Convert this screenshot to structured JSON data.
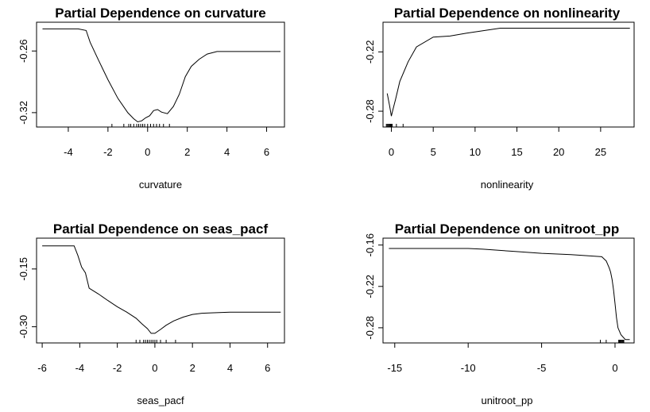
{
  "chart_data": [
    {
      "type": "line",
      "title": "Partial Dependence on curvature",
      "xlabel": "curvature",
      "ylabel": "",
      "xlim": [
        -5.6,
        6.9
      ],
      "ylim": [
        -0.334,
        -0.232
      ],
      "xticks": [
        -4,
        -2,
        0,
        2,
        4,
        6
      ],
      "xtick_labels": [
        "-4",
        "-2",
        "0",
        "2",
        "4",
        "6"
      ],
      "yticks": [
        -0.26,
        -0.32
      ],
      "ytick_labels": [
        "-0.26",
        "-0.32"
      ],
      "x": [
        -5.3,
        -3.5,
        -3.1,
        -2.9,
        -2.5,
        -2.0,
        -1.5,
        -1.0,
        -0.7,
        -0.5,
        -0.3,
        -0.1,
        0.1,
        0.3,
        0.5,
        0.7,
        1.0,
        1.3,
        1.6,
        1.9,
        2.2,
        2.6,
        3.0,
        3.5,
        4.0,
        6.7
      ],
      "y": [
        -0.2385,
        -0.2385,
        -0.24,
        -0.2515,
        -0.268,
        -0.288,
        -0.306,
        -0.32,
        -0.326,
        -0.329,
        -0.328,
        -0.325,
        -0.323,
        -0.318,
        -0.317,
        -0.3195,
        -0.321,
        -0.314,
        -0.302,
        -0.285,
        -0.275,
        -0.268,
        -0.263,
        -0.2605,
        -0.2605,
        -0.2605
      ],
      "rug": [
        -1.8,
        -1.2,
        -0.95,
        -0.85,
        -0.7,
        -0.55,
        -0.45,
        -0.35,
        -0.25,
        -0.15,
        0.0,
        0.15,
        0.3,
        0.45,
        0.6,
        0.8,
        1.1
      ]
    },
    {
      "type": "line",
      "title": "Partial Dependence on nonlinearity",
      "xlabel": "nonlinearity",
      "ylabel": "",
      "xlim": [
        -1.0,
        29.0
      ],
      "ylim": [
        -0.296,
        -0.19
      ],
      "xticks": [
        0,
        5,
        10,
        15,
        20,
        25
      ],
      "xtick_labels": [
        "0",
        "5",
        "10",
        "15",
        "20",
        "25"
      ],
      "yticks": [
        -0.22,
        -0.28
      ],
      "ytick_labels": [
        "-0.22",
        "-0.28"
      ],
      "x": [
        -0.5,
        -0.2,
        0.0,
        0.2,
        0.5,
        1.0,
        2.0,
        3.0,
        5.0,
        7.0,
        9.0,
        13.0,
        20.0,
        28.5
      ],
      "y": [
        -0.262,
        -0.275,
        -0.285,
        -0.278,
        -0.268,
        -0.25,
        -0.23,
        -0.215,
        -0.205,
        -0.204,
        -0.201,
        -0.196,
        -0.196,
        -0.196
      ],
      "rug": [
        -0.6,
        -0.5,
        -0.4,
        -0.3,
        -0.2,
        -0.1,
        0.0,
        0.1,
        0.6,
        1.4
      ]
    },
    {
      "type": "line",
      "title": "Partial Dependence on seas_pacf",
      "xlabel": "seas_pacf",
      "ylabel": "",
      "xlim": [
        -6.3,
        6.9
      ],
      "ylim": [
        -0.342,
        -0.07
      ],
      "xticks": [
        -6,
        -4,
        -2,
        0,
        2,
        4,
        6
      ],
      "xtick_labels": [
        "-6",
        "-4",
        "-2",
        "0",
        "2",
        "4",
        "6"
      ],
      "yticks": [
        -0.15,
        -0.3
      ],
      "ytick_labels": [
        "-0.15",
        "-0.30"
      ],
      "x": [
        -6.0,
        -4.3,
        -4.1,
        -3.9,
        -3.7,
        -3.5,
        -3.0,
        -2.5,
        -2.0,
        -1.5,
        -1.0,
        -0.7,
        -0.4,
        -0.2,
        0.0,
        0.3,
        0.6,
        1.0,
        1.5,
        2.0,
        2.5,
        3.0,
        4.0,
        6.7
      ],
      "y": [
        -0.09,
        -0.09,
        -0.115,
        -0.145,
        -0.16,
        -0.2,
        -0.215,
        -0.232,
        -0.248,
        -0.262,
        -0.278,
        -0.292,
        -0.305,
        -0.317,
        -0.317,
        -0.307,
        -0.296,
        -0.285,
        -0.275,
        -0.268,
        -0.265,
        -0.264,
        -0.262,
        -0.262
      ],
      "rug": [
        -1.0,
        -0.8,
        -0.6,
        -0.5,
        -0.4,
        -0.3,
        -0.2,
        -0.1,
        0.0,
        0.1,
        0.3,
        0.6,
        1.1
      ]
    },
    {
      "type": "line",
      "title": "Partial Dependence on unitroot_pp",
      "xlabel": "unitroot_pp",
      "ylabel": "",
      "xlim": [
        -15.8,
        1.3
      ],
      "ylim": [
        -0.302,
        -0.15
      ],
      "xticks": [
        -15,
        -10,
        -5,
        0
      ],
      "xtick_labels": [
        "-15",
        "-10",
        "-5",
        "0"
      ],
      "yticks": [
        -0.16,
        -0.22,
        -0.28
      ],
      "ytick_labels": [
        "-0.16",
        "-0.22",
        "-0.28"
      ],
      "x": [
        -15.4,
        -10.0,
        -9.0,
        -7.0,
        -5.0,
        -3.0,
        -1.5,
        -0.9,
        -0.6,
        -0.4,
        -0.3,
        -0.2,
        -0.1,
        0.0,
        0.1,
        0.2,
        0.4,
        0.7,
        1.0
      ],
      "y": [
        -0.165,
        -0.165,
        -0.166,
        -0.169,
        -0.172,
        -0.174,
        -0.176,
        -0.177,
        -0.183,
        -0.193,
        -0.199,
        -0.21,
        -0.225,
        -0.245,
        -0.265,
        -0.28,
        -0.29,
        -0.297,
        -0.297
      ],
      "rug": [
        -1.0,
        -0.6,
        0.25,
        0.3,
        0.35,
        0.4,
        0.45,
        0.5,
        0.55,
        0.6
      ]
    }
  ]
}
